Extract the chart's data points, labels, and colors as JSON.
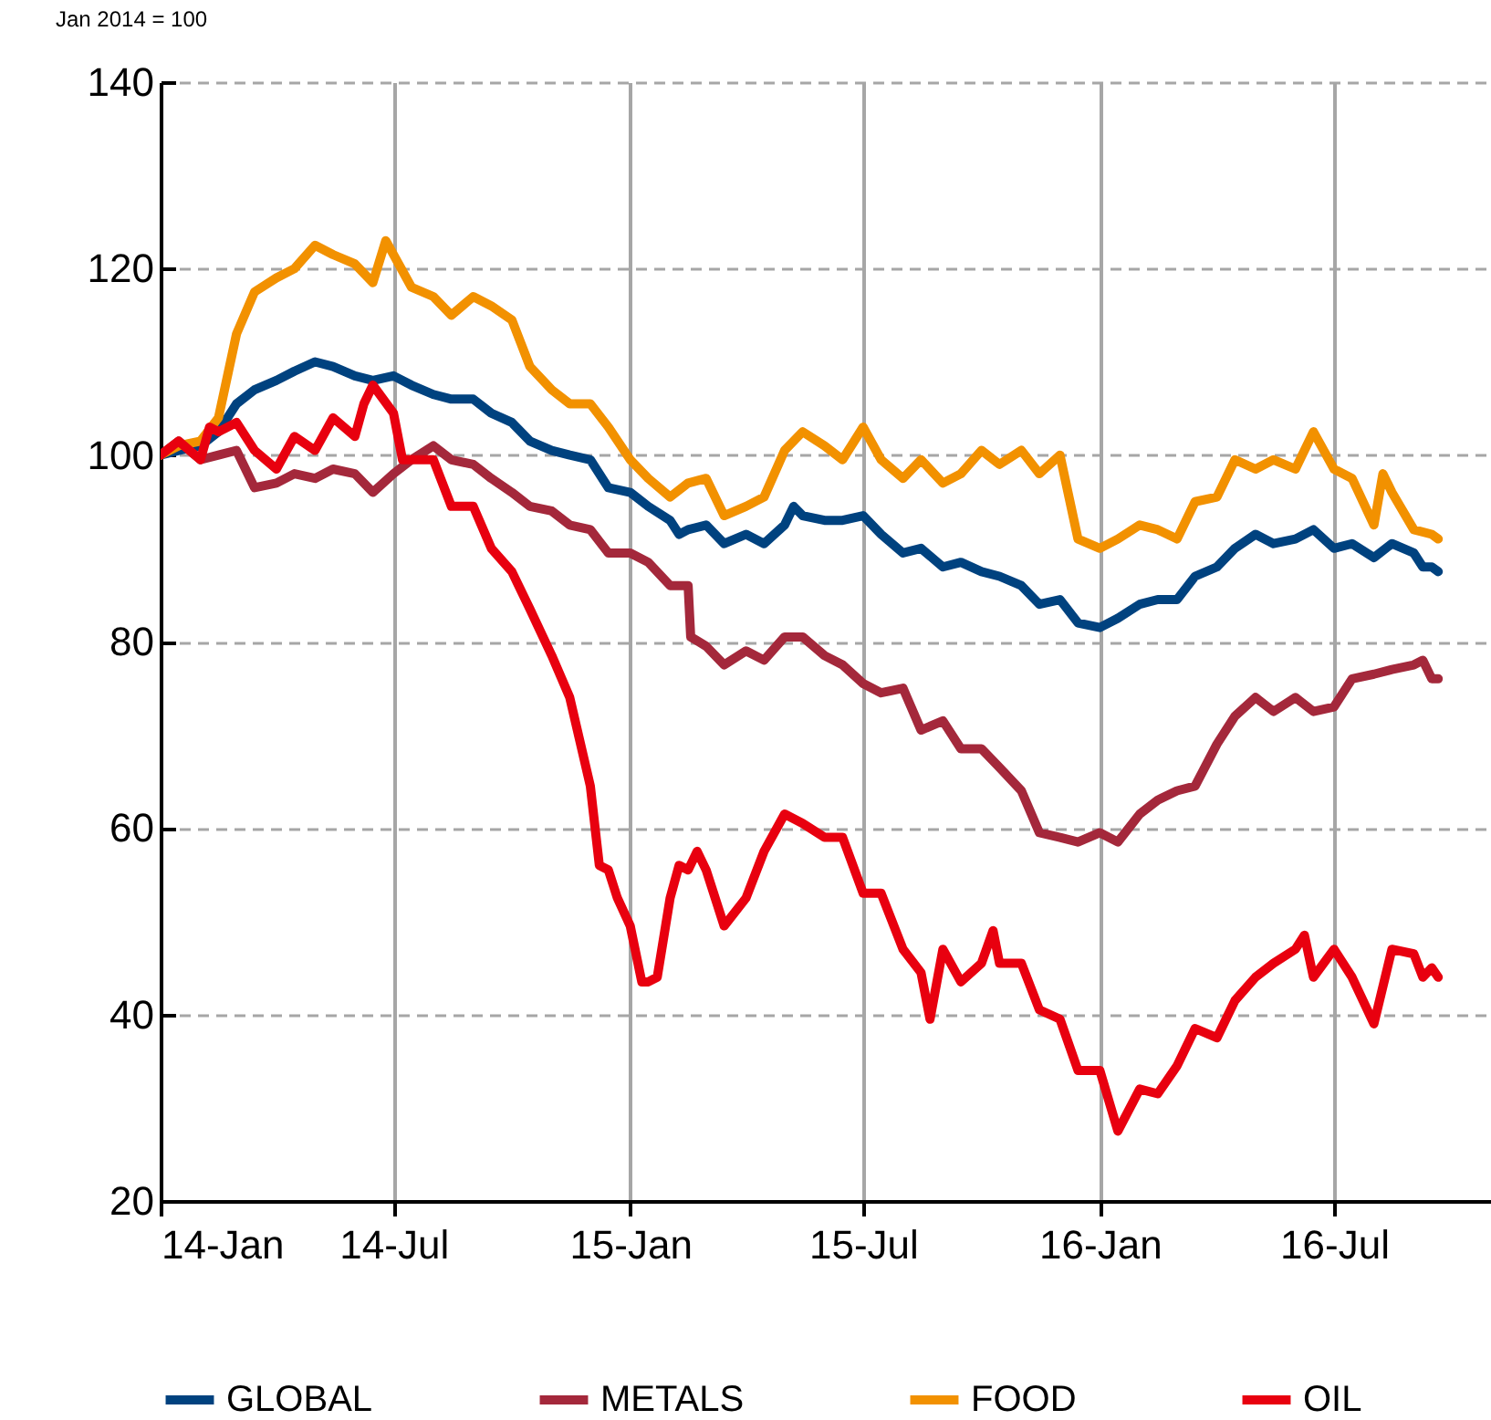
{
  "chart_data": {
    "type": "line",
    "ylabel": "Jan 2014 = 100",
    "xlim": [
      "2014-01-01",
      "2016-10-31"
    ],
    "xticks": [
      {
        "value": "2014-01-01",
        "label": "14-Jan"
      },
      {
        "value": "2014-07-01",
        "label": "14-Jul"
      },
      {
        "value": "2015-01-01",
        "label": "15-Jan"
      },
      {
        "value": "2015-07-01",
        "label": "15-Jul"
      },
      {
        "value": "2016-01-01",
        "label": "16-Jan"
      },
      {
        "value": "2016-07-01",
        "label": "16-Jul"
      }
    ],
    "ylim": [
      20,
      140
    ],
    "yticks": [
      20,
      40,
      60,
      80,
      100,
      120,
      140
    ],
    "grid": true,
    "legend": "bottom",
    "series": [
      {
        "name": "GLOBAL",
        "color": "#00427f",
        "x": [
          "2014-01-01",
          "2014-01-15",
          "2014-02-01",
          "2014-02-15",
          "2014-03-01",
          "2014-03-15",
          "2014-04-01",
          "2014-04-15",
          "2014-05-01",
          "2014-05-15",
          "2014-06-01",
          "2014-06-15",
          "2014-07-01",
          "2014-07-15",
          "2014-08-01",
          "2014-08-15",
          "2014-09-01",
          "2014-09-15",
          "2014-10-01",
          "2014-10-15",
          "2014-11-01",
          "2014-11-15",
          "2014-12-01",
          "2014-12-15",
          "2015-01-01",
          "2015-01-15",
          "2015-02-01",
          "2015-02-08",
          "2015-02-15",
          "2015-03-01",
          "2015-03-15",
          "2015-04-01",
          "2015-04-15",
          "2015-05-01",
          "2015-05-08",
          "2015-05-15",
          "2015-06-01",
          "2015-06-15",
          "2015-07-01",
          "2015-07-15",
          "2015-08-01",
          "2015-08-15",
          "2015-09-01",
          "2015-09-15",
          "2015-10-01",
          "2015-10-15",
          "2015-11-01",
          "2015-11-15",
          "2015-12-01",
          "2015-12-15",
          "2016-01-01",
          "2016-01-15",
          "2016-02-01",
          "2016-02-15",
          "2016-03-01",
          "2016-03-15",
          "2016-04-01",
          "2016-04-15",
          "2016-05-01",
          "2016-05-15",
          "2016-06-01",
          "2016-06-15",
          "2016-07-01",
          "2016-07-15",
          "2016-08-01",
          "2016-08-15",
          "2016-09-01",
          "2016-09-08",
          "2016-09-15",
          "2016-09-20"
        ],
        "values": [
          100,
          100.5,
          101,
          102.5,
          105.5,
          107,
          108,
          109,
          110,
          109.5,
          108.5,
          108,
          108.5,
          107.5,
          106.5,
          106,
          106,
          104.5,
          103.5,
          101.5,
          100.5,
          100,
          99.5,
          96.5,
          96,
          94.5,
          93,
          91.5,
          92,
          92.5,
          90.5,
          91.5,
          90.5,
          92.5,
          94.5,
          93.5,
          93,
          93,
          93.5,
          91.5,
          89.5,
          90,
          88,
          88.5,
          87.5,
          87,
          86,
          84,
          84.5,
          82,
          81.5,
          82.5,
          84,
          84.5,
          84.5,
          87,
          88,
          90,
          91.5,
          90.5,
          91,
          92,
          90,
          90.5,
          89,
          90.5,
          89.5,
          88,
          88,
          87.5
        ]
      },
      {
        "name": "METALS",
        "color": "#a4283b",
        "x": [
          "2014-01-01",
          "2014-01-15",
          "2014-02-01",
          "2014-02-15",
          "2014-03-01",
          "2014-03-15",
          "2014-04-01",
          "2014-04-15",
          "2014-05-01",
          "2014-05-15",
          "2014-06-01",
          "2014-06-15",
          "2014-07-01",
          "2014-07-15",
          "2014-08-01",
          "2014-08-15",
          "2014-09-01",
          "2014-09-15",
          "2014-10-01",
          "2014-10-15",
          "2014-11-01",
          "2014-11-15",
          "2014-12-01",
          "2014-12-15",
          "2015-01-01",
          "2015-01-15",
          "2015-02-01",
          "2015-02-15",
          "2015-02-17",
          "2015-03-01",
          "2015-03-15",
          "2015-04-01",
          "2015-04-15",
          "2015-05-01",
          "2015-05-15",
          "2015-06-01",
          "2015-06-15",
          "2015-07-01",
          "2015-07-15",
          "2015-08-01",
          "2015-08-15",
          "2015-09-01",
          "2015-09-15",
          "2015-10-01",
          "2015-10-15",
          "2015-11-01",
          "2015-11-15",
          "2015-12-01",
          "2015-12-15",
          "2016-01-01",
          "2016-01-15",
          "2016-02-01",
          "2016-02-15",
          "2016-03-01",
          "2016-03-15",
          "2016-04-01",
          "2016-04-15",
          "2016-05-01",
          "2016-05-15",
          "2016-06-01",
          "2016-06-15",
          "2016-07-01",
          "2016-07-15",
          "2016-08-01",
          "2016-08-15",
          "2016-09-01",
          "2016-09-08",
          "2016-09-15",
          "2016-09-20"
        ],
        "values": [
          100,
          101.5,
          99.5,
          100,
          100.5,
          96.5,
          97,
          98,
          97.5,
          98.5,
          98,
          96,
          98,
          99.5,
          101,
          99.5,
          99,
          97.5,
          96,
          94.5,
          94,
          92.5,
          92,
          89.5,
          89.5,
          88.5,
          86,
          86,
          80.5,
          79.5,
          77.5,
          79,
          78,
          80.5,
          80.5,
          78.5,
          77.5,
          75.5,
          74.5,
          75,
          70.5,
          71.5,
          68.5,
          68.5,
          66.5,
          64,
          59.5,
          59,
          58.5,
          59.5,
          58.5,
          61.5,
          63,
          64,
          64.5,
          69,
          72,
          74,
          72.5,
          74,
          72.5,
          73,
          76,
          76.5,
          77,
          77.5,
          78,
          76,
          76
        ]
      },
      {
        "name": "FOOD",
        "color": "#f29100",
        "x": [
          "2014-01-01",
          "2014-01-15",
          "2014-02-01",
          "2014-02-15",
          "2014-03-01",
          "2014-03-15",
          "2014-04-01",
          "2014-04-15",
          "2014-05-01",
          "2014-05-15",
          "2014-06-01",
          "2014-06-15",
          "2014-06-25",
          "2014-07-15",
          "2014-08-01",
          "2014-08-15",
          "2014-09-01",
          "2014-09-15",
          "2014-10-01",
          "2014-10-08",
          "2014-10-15",
          "2014-11-01",
          "2014-11-15",
          "2014-12-01",
          "2014-12-15",
          "2015-01-01",
          "2015-01-15",
          "2015-02-01",
          "2015-02-15",
          "2015-03-01",
          "2015-03-15",
          "2015-04-01",
          "2015-04-15",
          "2015-05-01",
          "2015-05-15",
          "2015-06-01",
          "2015-06-15",
          "2015-07-01",
          "2015-07-15",
          "2015-08-01",
          "2015-08-15",
          "2015-09-01",
          "2015-09-15",
          "2015-10-01",
          "2015-10-15",
          "2015-11-01",
          "2015-11-15",
          "2015-12-01",
          "2015-12-08",
          "2015-12-15",
          "2016-01-01",
          "2016-01-15",
          "2016-02-01",
          "2016-02-15",
          "2016-03-01",
          "2016-03-15",
          "2016-04-01",
          "2016-04-15",
          "2016-05-01",
          "2016-05-15",
          "2016-06-01",
          "2016-06-15",
          "2016-07-01",
          "2016-07-15",
          "2016-08-01",
          "2016-08-08",
          "2016-08-15",
          "2016-09-01",
          "2016-09-15",
          "2016-09-20"
        ],
        "values": [
          100,
          101,
          101.5,
          104,
          113,
          117.5,
          119,
          120,
          122.5,
          121.5,
          120.5,
          118.5,
          123,
          118,
          117,
          115,
          117,
          116,
          114.5,
          112,
          109.5,
          107,
          105.5,
          105.5,
          103,
          99.5,
          97.5,
          95.5,
          97,
          97.5,
          93.5,
          94.5,
          95.5,
          100.5,
          102.5,
          101,
          99.5,
          103,
          99.5,
          97.5,
          99.5,
          97,
          98,
          100.5,
          99,
          100.5,
          98,
          100,
          95.5,
          91,
          90,
          91,
          92.5,
          92,
          91,
          95,
          95.5,
          99.5,
          98.5,
          99.5,
          98.5,
          102.5,
          98.5,
          97.5,
          92.5,
          98,
          96,
          92,
          91.5,
          91
        ]
      },
      {
        "name": "OIL",
        "color": "#e8000f",
        "x": [
          "2014-01-01",
          "2014-01-15",
          "2014-02-01",
          "2014-02-08",
          "2014-02-15",
          "2014-03-01",
          "2014-03-15",
          "2014-04-01",
          "2014-04-15",
          "2014-05-01",
          "2014-05-15",
          "2014-06-01",
          "2014-06-08",
          "2014-06-15",
          "2014-07-01",
          "2014-07-08",
          "2014-07-15",
          "2014-08-01",
          "2014-08-15",
          "2014-09-01",
          "2014-09-15",
          "2014-10-01",
          "2014-10-15",
          "2014-11-01",
          "2014-11-15",
          "2014-12-01",
          "2014-12-08",
          "2014-12-15",
          "2014-12-22",
          "2015-01-01",
          "2015-01-10",
          "2015-01-15",
          "2015-01-22",
          "2015-02-01",
          "2015-02-08",
          "2015-02-15",
          "2015-02-22",
          "2015-03-01",
          "2015-03-15",
          "2015-04-01",
          "2015-04-15",
          "2015-05-01",
          "2015-05-15",
          "2015-06-01",
          "2015-06-15",
          "2015-07-01",
          "2015-07-15",
          "2015-08-01",
          "2015-08-15",
          "2015-08-22",
          "2015-09-01",
          "2015-09-15",
          "2015-10-01",
          "2015-10-10",
          "2015-10-15",
          "2015-11-01",
          "2015-11-15",
          "2015-12-01",
          "2015-12-15",
          "2016-01-01",
          "2016-01-15",
          "2016-02-01",
          "2016-02-15",
          "2016-03-01",
          "2016-03-15",
          "2016-04-01",
          "2016-04-15",
          "2016-05-01",
          "2016-05-15",
          "2016-06-01",
          "2016-06-08",
          "2016-06-15",
          "2016-07-01",
          "2016-07-15",
          "2016-08-01",
          "2016-08-15",
          "2016-09-01",
          "2016-09-08",
          "2016-09-15",
          "2016-09-20"
        ],
        "values": [
          100,
          101.5,
          99.5,
          103,
          102.5,
          103.5,
          100.5,
          98.5,
          102,
          100.5,
          104,
          102,
          105.5,
          107.5,
          104.5,
          99.5,
          99.5,
          99.5,
          94.5,
          94.5,
          90,
          87.5,
          83.5,
          78.5,
          74,
          64.5,
          56,
          55.5,
          52.5,
          49.5,
          43.5,
          43.5,
          44,
          52.5,
          56,
          55.5,
          57.5,
          55.5,
          49.5,
          52.5,
          57.5,
          61.5,
          60.5,
          59,
          59,
          53,
          53,
          47,
          44.5,
          39.5,
          47,
          43.5,
          45.5,
          49,
          45.5,
          45.5,
          40.5,
          39.5,
          34,
          34,
          27.5,
          32,
          31.5,
          34.5,
          38.5,
          37.5,
          41.5,
          44,
          45.5,
          47,
          48.5,
          44,
          47,
          44,
          39,
          47,
          46.5,
          44,
          45,
          44
        ]
      }
    ]
  }
}
